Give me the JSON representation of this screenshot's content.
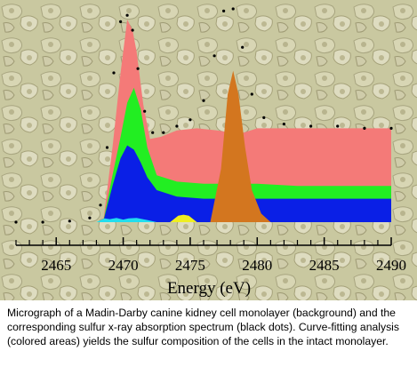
{
  "chart_data": {
    "type": "area",
    "title": "",
    "xlabel": "Energy (eV)",
    "ylabel": "",
    "xlim": [
      2462,
      2490
    ],
    "ylim": [
      0,
      1.0
    ],
    "x_ticks": [
      2465,
      2470,
      2475,
      2480,
      2485,
      2490
    ],
    "x_tick_labels": [
      "2465",
      "2470",
      "2475",
      "2480",
      "2485",
      "2490"
    ],
    "grid": false,
    "background": "micrograph of cell monolayer",
    "colors": {
      "red": "#f47a78",
      "green": "#22ee22",
      "blue": "#0a1fe6",
      "cyan": "#22ddee",
      "yellow": "#eeee22",
      "orange": "#d3761f",
      "dots": "#000000"
    },
    "series": [
      {
        "name": "",
        "kind": "stacked-area",
        "color_key": "red",
        "x": [
          2468.5,
          2469.2,
          2469.8,
          2470.3,
          2470.7,
          2471.0,
          2471.5,
          2472.0,
          2472.8,
          2474.0,
          2475.5,
          2477.0,
          2478.0,
          2479.0,
          2480.0,
          2482.0,
          2485.0,
          2488.0,
          2490.0
        ],
        "values": [
          0.0,
          0.35,
          0.7,
          0.95,
          0.9,
          0.8,
          0.55,
          0.39,
          0.4,
          0.43,
          0.44,
          0.43,
          0.42,
          0.42,
          0.44,
          0.44,
          0.44,
          0.44,
          0.44
        ]
      },
      {
        "name": "",
        "kind": "stacked-area",
        "color_key": "green",
        "x": [
          2468.5,
          2469.2,
          2469.8,
          2470.3,
          2470.8,
          2471.3,
          2471.8,
          2472.5,
          2474.0,
          2476.0,
          2478.0,
          2480.0,
          2483.0,
          2487.0,
          2490.0
        ],
        "values": [
          0.0,
          0.22,
          0.4,
          0.56,
          0.63,
          0.53,
          0.35,
          0.22,
          0.19,
          0.18,
          0.18,
          0.18,
          0.17,
          0.17,
          0.17
        ]
      },
      {
        "name": "",
        "kind": "stacked-area",
        "color_key": "blue",
        "x": [
          2468.5,
          2469.2,
          2469.8,
          2470.3,
          2470.8,
          2471.3,
          2471.8,
          2472.5,
          2474.0,
          2476.0,
          2478.0,
          2480.0,
          2483.0,
          2487.0,
          2490.0
        ],
        "values": [
          0.0,
          0.17,
          0.3,
          0.36,
          0.34,
          0.28,
          0.21,
          0.15,
          0.12,
          0.11,
          0.11,
          0.11,
          0.11,
          0.11,
          0.11
        ]
      },
      {
        "name": "",
        "kind": "peak",
        "color_key": "cyan",
        "x": [
          2468.0,
          2468.6,
          2469.0,
          2469.5,
          2470.0,
          2470.4,
          2471.0,
          2471.8,
          2472.5
        ],
        "values": [
          0.0,
          0.018,
          0.014,
          0.02,
          0.012,
          0.018,
          0.02,
          0.01,
          0.0
        ]
      },
      {
        "name": "",
        "kind": "peak",
        "color_key": "yellow",
        "x": [
          2473.5,
          2474.1,
          2474.5,
          2474.9,
          2475.5
        ],
        "values": [
          0.0,
          0.03,
          0.035,
          0.03,
          0.0
        ]
      },
      {
        "name": "",
        "kind": "peak",
        "color_key": "orange",
        "x": [
          2476.5,
          2477.3,
          2477.8,
          2478.2,
          2478.6,
          2479.1,
          2479.6,
          2480.3,
          2481.0
        ],
        "values": [
          0.0,
          0.25,
          0.6,
          0.71,
          0.6,
          0.35,
          0.15,
          0.04,
          0.0
        ]
      },
      {
        "name": "",
        "kind": "dots",
        "color_key": "dots",
        "x": [
          2462,
          2464,
          2466,
          2467.5,
          2468.3,
          2468.8,
          2469.3,
          2469.8,
          2470.3,
          2470.7,
          2471.1,
          2471.6,
          2472.2,
          2473.0,
          2474.0,
          2475.0,
          2476.0,
          2476.8,
          2477.5,
          2478.2,
          2478.9,
          2479.6,
          2480.5,
          2482.0,
          2484.0,
          2486.0,
          2488.0,
          2490.0
        ],
        "values": [
          0.0,
          0.0,
          0.005,
          0.02,
          0.08,
          0.35,
          0.7,
          0.94,
          0.97,
          0.9,
          0.72,
          0.52,
          0.42,
          0.42,
          0.45,
          0.48,
          0.57,
          0.78,
          0.99,
          1.0,
          0.82,
          0.6,
          0.49,
          0.46,
          0.45,
          0.45,
          0.44,
          0.44
        ]
      }
    ]
  },
  "caption": "Micrograph of a Madin-Darby canine kidney cell monolayer (background) and the corresponding sulfur x-ray absorption spectrum (black dots). Curve-fitting analysis (colored areas) yields the sulfur composition of the cells in the intact monolayer."
}
